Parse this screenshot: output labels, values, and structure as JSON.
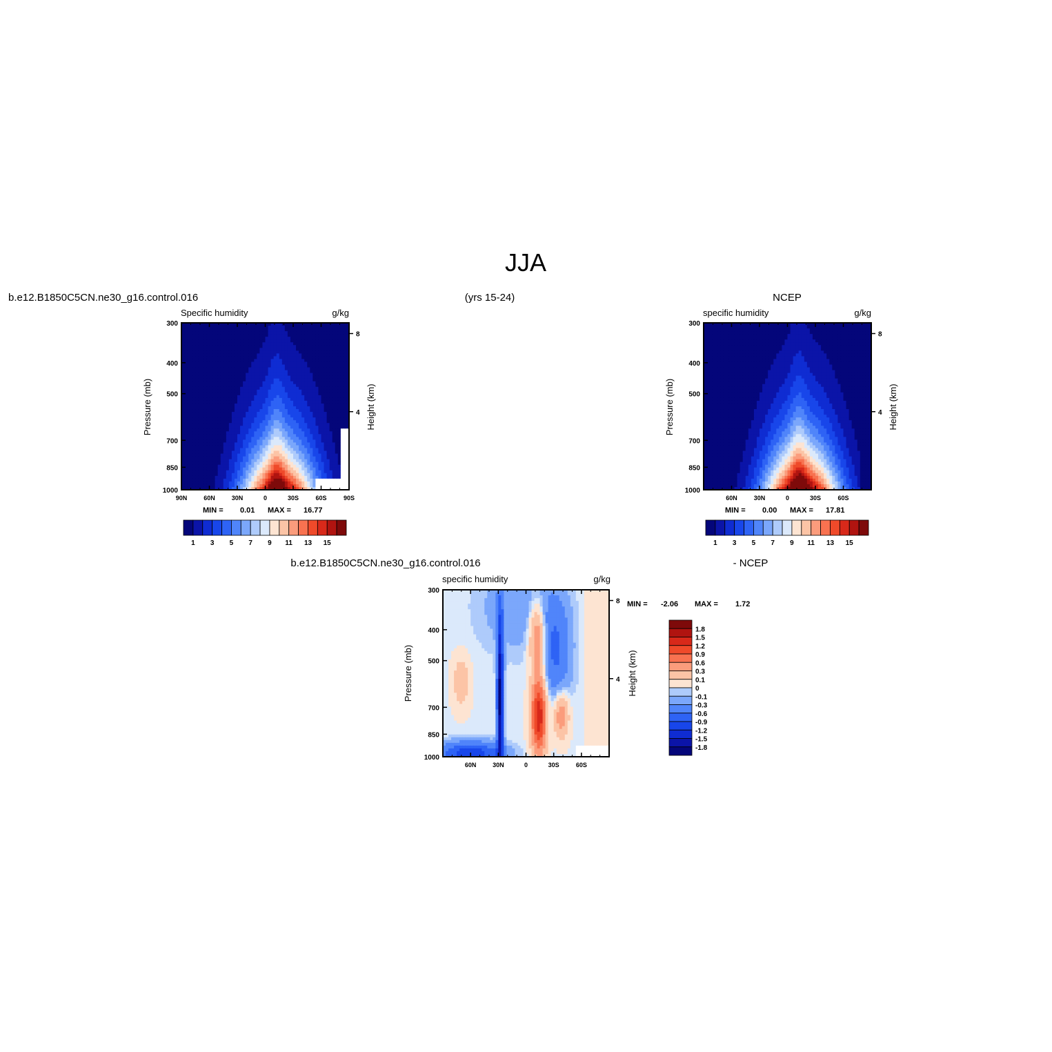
{
  "page": {
    "main_title": "JJA",
    "model_case": "b.e12.B1850C5CN.ne30_g16.control.016",
    "years": "(yrs 15-24)",
    "obs_name": "NCEP",
    "diff_case": "b.e12.B1850C5CN.ne30_g16.control.016",
    "diff_suffix": "- NCEP"
  },
  "colors": {
    "model_obs_scale": [
      "#04067a",
      "#0b14a8",
      "#0f2cd2",
      "#1846ea",
      "#2e63f5",
      "#5085fa",
      "#7ba7fb",
      "#aecbfb",
      "#dbe9fb",
      "#fde4d2",
      "#fcc4a6",
      "#fb9c7c",
      "#f87250",
      "#ef4a2a",
      "#d8291a",
      "#b01410",
      "#7e0a0a"
    ],
    "diff_scale": [
      "#04067a",
      "#0b14a8",
      "#0f2cd2",
      "#1846ea",
      "#2e63f5",
      "#5085fa",
      "#7ba7fb",
      "#aecbfb",
      "#dbe9fb",
      "#fde4d2",
      "#fcc4a6",
      "#fb9c7c",
      "#f87250",
      "#ef4a2a",
      "#d8291a",
      "#b01410",
      "#7e0a0a"
    ]
  },
  "chart_data": [
    {
      "id": "model",
      "type": "heatmap",
      "left_title": "Specific humidity",
      "right_title": "g/kg",
      "ylabel": "Pressure (mb)",
      "ylabel_right": "Height (km)",
      "yticks": [
        "300",
        "400",
        "500",
        "700",
        "850",
        "1000"
      ],
      "yticks_right": [
        "8",
        "4"
      ],
      "xticks": [
        "90N",
        "60N",
        "30N",
        "0",
        "30S",
        "60S",
        "90S"
      ],
      "stats": {
        "min_label": "MIN =",
        "min": "0.01",
        "max_label": "MAX =",
        "max": "16.77"
      },
      "peak_lat": -15,
      "peak_value": 16.77,
      "colorbar_labels": [
        "1",
        "3",
        "5",
        "7",
        "9",
        "11",
        "13",
        "15"
      ]
    },
    {
      "id": "obs",
      "type": "heatmap",
      "left_title": "specific humidity",
      "right_title": "g/kg",
      "ylabel": "Pressure (mb)",
      "ylabel_right": "Height (km)",
      "yticks": [
        "300",
        "400",
        "500",
        "700",
        "850",
        "1000"
      ],
      "yticks_right": [
        "8",
        "4"
      ],
      "xticks": [
        "60N",
        "30N",
        "0",
        "30S",
        "60S"
      ],
      "stats": {
        "min_label": "MIN =",
        "min": "0.00",
        "max_label": "MAX =",
        "max": "17.81"
      },
      "peak_lat": -15,
      "peak_value": 17.81,
      "colorbar_labels": [
        "1",
        "3",
        "5",
        "7",
        "9",
        "11",
        "13",
        "15"
      ]
    },
    {
      "id": "diff",
      "type": "heatmap",
      "left_title": "specific humidity",
      "right_title": "g/kg",
      "ylabel": "Pressure (mb)",
      "ylabel_right": "Height (km)",
      "yticks": [
        "300",
        "400",
        "500",
        "700",
        "850",
        "1000"
      ],
      "yticks_right": [
        "8",
        "4"
      ],
      "xticks": [
        "60N",
        "30N",
        "0",
        "30S",
        "60S"
      ],
      "stats": {
        "min_label": "MIN =",
        "min": "-2.06",
        "max_label": "MAX =",
        "max": "1.72"
      },
      "colorbar_labels": [
        "1.8",
        "1.5",
        "1.2",
        "0.9",
        "0.6",
        "0.3",
        "0.1",
        "0",
        "-0.1",
        "-0.3",
        "-0.6",
        "-0.9",
        "-1.2",
        "-1.5",
        "-1.8"
      ]
    }
  ]
}
